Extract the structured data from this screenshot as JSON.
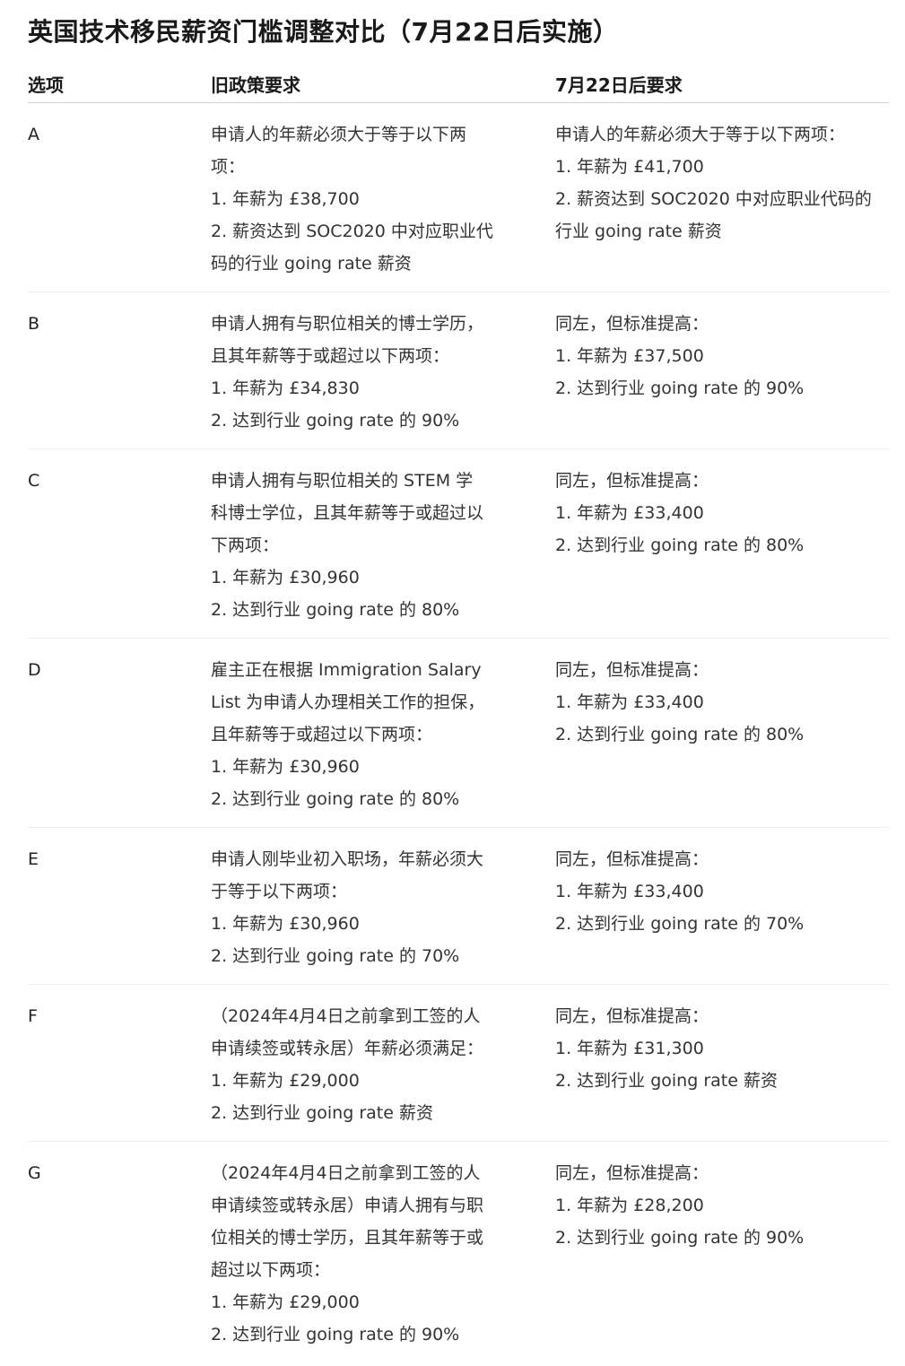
{
  "title": "英国技术移民薪资门槛调整对比（7月22日后实施）",
  "headers": [
    "选项",
    "旧政策要求",
    "7月22日后要求"
  ],
  "rows": [
    {
      "option": "A",
      "old": [
        "申请人的年薪必须大于等于以下两",
        "项：",
        "1. 年薪为 £38,700",
        "2. 薪资达到 SOC2020 中对应职业代",
        "码的行业 going rate 薪资"
      ],
      "new": [
        "申请人的年薪必须大于等于以下两项：",
        "1. 年薪为 £41,700",
        "2. 薪资达到 SOC2020 中对应职业代码的",
        "行业 going rate 薪资"
      ]
    },
    {
      "option": "B",
      "old": [
        "申请人拥有与职位相关的博士学历，",
        "且其年薪等于或超过以下两项：",
        "1. 年薪为 £34,830",
        "2. 达到行业 going rate 的 90%"
      ],
      "new": [
        "同左，但标准提高：",
        "1. 年薪为 £37,500",
        "2. 达到行业 going rate 的 90%"
      ]
    },
    {
      "option": "C",
      "old": [
        "申请人拥有与职位相关的 STEM 学",
        "科博士学位，且其年薪等于或超过以",
        "下两项：",
        "1. 年薪为 £30,960",
        "2. 达到行业 going rate 的 80%"
      ],
      "new": [
        "同左，但标准提高：",
        "1. 年薪为 £33,400",
        "2. 达到行业 going rate 的 80%"
      ]
    },
    {
      "option": "D",
      "old": [
        "雇主正在根据 Immigration Salary",
        "List 为申请人办理相关工作的担保，",
        "且年薪等于或超过以下两项：",
        "1. 年薪为 £30,960",
        "2. 达到行业 going rate 的 80%"
      ],
      "new": [
        "同左，但标准提高：",
        "1. 年薪为 £33,400",
        "2. 达到行业 going rate 的 80%"
      ]
    },
    {
      "option": "E",
      "old": [
        "申请人刚毕业初入职场，年薪必须大",
        "于等于以下两项：",
        "1. 年薪为 £30,960",
        "2. 达到行业 going rate 的 70%"
      ],
      "new": [
        "同左，但标准提高：",
        "1. 年薪为 £33,400",
        "2. 达到行业 going rate 的 70%"
      ]
    },
    {
      "option": "F",
      "old": [
        "（2024年4月4日之前拿到工签的人",
        "申请续签或转永居）年薪必须满足：",
        "1. 年薪为 £29,000",
        "2. 达到行业 going rate 薪资"
      ],
      "new": [
        "同左，但标准提高：",
        "1. 年薪为 £31,300",
        "2. 达到行业 going rate 薪资"
      ]
    },
    {
      "option": "G",
      "old": [
        "（2024年4月4日之前拿到工签的人",
        "申请续签或转永居）申请人拥有与职",
        "位相关的博士学历，且其年薪等于或",
        "超过以下两项：",
        "1. 年薪为 £29,000",
        "2. 达到行业 going rate 的 90%"
      ],
      "new": [
        "同左，但标准提高：",
        "1. 年薪为 £28,200",
        "2. 达到行业 going rate 的 90%"
      ]
    }
  ]
}
